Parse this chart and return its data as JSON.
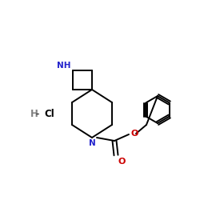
{
  "bg_color": "#ffffff",
  "bond_color": "#000000",
  "N_color": "#2222cc",
  "O_color": "#cc0000",
  "HCl_H_color": "#808080",
  "HCl_Cl_color": "#000000",
  "NH_label": "NH",
  "N_label": "N",
  "O_label": "O",
  "HCl_label_H": "H",
  "HCl_label_Cl": "Cl",
  "figsize": [
    2.5,
    2.5
  ],
  "dpi": 100
}
